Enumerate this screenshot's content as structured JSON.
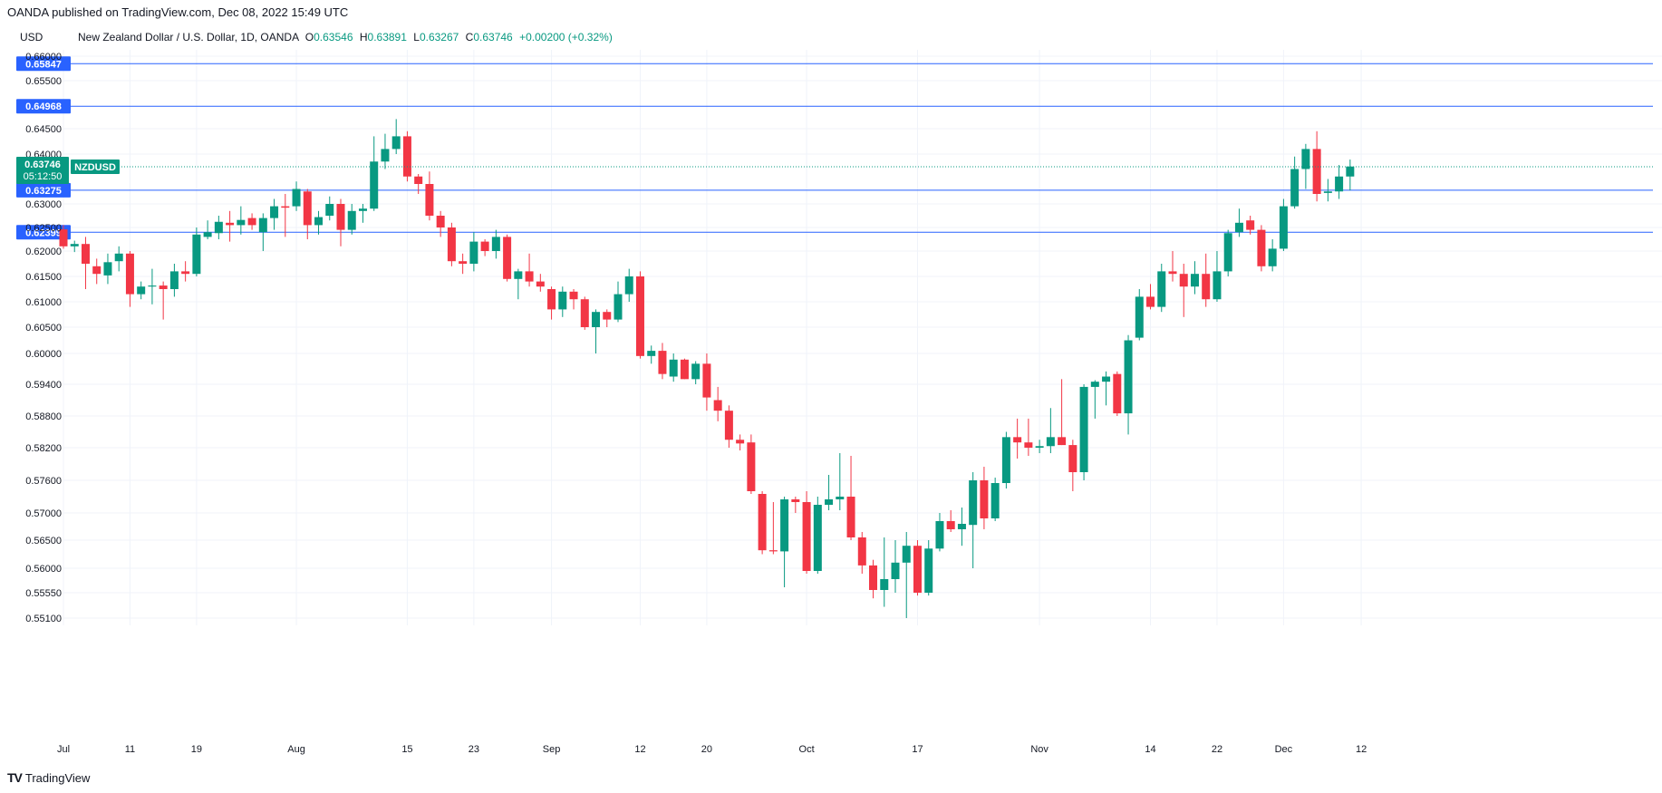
{
  "header": {
    "published": "OANDA published on TradingView.com, Dec 08, 2022 15:49 UTC"
  },
  "footer": {
    "logo_mark": "TV",
    "brand": "TradingView"
  },
  "chart_data": {
    "type": "candlestick",
    "currency_label": "USD",
    "symbol_line": "New Zealand Dollar / U.S. Dollar, 1D, OANDA",
    "ohlc": {
      "o_label": "O",
      "o": "0.63546",
      "h_label": "H",
      "h": "0.63891",
      "l_label": "L",
      "l": "0.63267",
      "c_label": "C",
      "c": "0.63746",
      "change": "+0.00200 (+0.32%)"
    },
    "y_ticks": [
      "0.66000",
      "0.65500",
      "0.64500",
      "0.64000",
      "0.63000",
      "0.62500",
      "0.62000",
      "0.61500",
      "0.61000",
      "0.60500",
      "0.60000",
      "0.59400",
      "0.58800",
      "0.58200",
      "0.57600",
      "0.57000",
      "0.56500",
      "0.56000",
      "0.55550",
      "0.55100"
    ],
    "x_ticks": [
      "Jul",
      "11",
      "19",
      "Aug",
      "15",
      "23",
      "Sep",
      "12",
      "20",
      "Oct",
      "17",
      "Nov",
      "14",
      "22",
      "Dec",
      "12"
    ],
    "horizontal_levels": [
      "0.65847",
      "0.64968",
      "0.63275",
      "0.62399"
    ],
    "price_label": {
      "value": "0.63746",
      "countdown": "05:12:50",
      "symbol": "NZDUSD"
    },
    "colors": {
      "up": "#089981",
      "down": "#f23645",
      "level": "#2962ff",
      "axis_text": "#131722",
      "grid": "#f0f3fa"
    },
    "candles": [
      {
        "date": "2022-07-01",
        "o": 0.6246,
        "h": 0.6255,
        "l": 0.6205,
        "c": 0.621
      },
      {
        "date": "2022-07-04",
        "o": 0.621,
        "h": 0.6222,
        "l": 0.6198,
        "c": 0.6215
      },
      {
        "date": "2022-07-05",
        "o": 0.6215,
        "h": 0.623,
        "l": 0.6125,
        "c": 0.6175
      },
      {
        "date": "2022-07-06",
        "o": 0.617,
        "h": 0.6185,
        "l": 0.6135,
        "c": 0.6155
      },
      {
        "date": "2022-07-07",
        "o": 0.6152,
        "h": 0.6195,
        "l": 0.6135,
        "c": 0.6178
      },
      {
        "date": "2022-07-08",
        "o": 0.618,
        "h": 0.621,
        "l": 0.616,
        "c": 0.6195
      },
      {
        "date": "2022-07-11",
        "o": 0.6195,
        "h": 0.62,
        "l": 0.609,
        "c": 0.6115
      },
      {
        "date": "2022-07-12",
        "o": 0.6115,
        "h": 0.614,
        "l": 0.6105,
        "c": 0.613
      },
      {
        "date": "2022-07-13",
        "o": 0.613,
        "h": 0.6165,
        "l": 0.6095,
        "c": 0.6132
      },
      {
        "date": "2022-07-14",
        "o": 0.6132,
        "h": 0.614,
        "l": 0.6065,
        "c": 0.6125
      },
      {
        "date": "2022-07-15",
        "o": 0.6125,
        "h": 0.6175,
        "l": 0.611,
        "c": 0.616
      },
      {
        "date": "2022-07-18",
        "o": 0.616,
        "h": 0.618,
        "l": 0.614,
        "c": 0.6155
      },
      {
        "date": "2022-07-19",
        "o": 0.6155,
        "h": 0.625,
        "l": 0.615,
        "c": 0.6235
      },
      {
        "date": "2022-07-20",
        "o": 0.623,
        "h": 0.6265,
        "l": 0.6225,
        "c": 0.624
      },
      {
        "date": "2022-07-21",
        "o": 0.6238,
        "h": 0.6275,
        "l": 0.6225,
        "c": 0.6262
      },
      {
        "date": "2022-07-22",
        "o": 0.626,
        "h": 0.6285,
        "l": 0.622,
        "c": 0.6255
      },
      {
        "date": "2022-07-25",
        "o": 0.6255,
        "h": 0.6295,
        "l": 0.6235,
        "c": 0.6266
      },
      {
        "date": "2022-07-26",
        "o": 0.627,
        "h": 0.628,
        "l": 0.6245,
        "c": 0.6255
      },
      {
        "date": "2022-07-27",
        "o": 0.624,
        "h": 0.628,
        "l": 0.62,
        "c": 0.627
      },
      {
        "date": "2022-07-28",
        "o": 0.627,
        "h": 0.631,
        "l": 0.6245,
        "c": 0.6295
      },
      {
        "date": "2022-07-29",
        "o": 0.6295,
        "h": 0.632,
        "l": 0.623,
        "c": 0.6292
      },
      {
        "date": "2022-08-01",
        "o": 0.6295,
        "h": 0.6345,
        "l": 0.6285,
        "c": 0.633
      },
      {
        "date": "2022-08-02",
        "o": 0.6325,
        "h": 0.633,
        "l": 0.6225,
        "c": 0.6255
      },
      {
        "date": "2022-08-03",
        "o": 0.6255,
        "h": 0.6285,
        "l": 0.6235,
        "c": 0.6272
      },
      {
        "date": "2022-08-04",
        "o": 0.6275,
        "h": 0.6315,
        "l": 0.6265,
        "c": 0.63
      },
      {
        "date": "2022-08-05",
        "o": 0.63,
        "h": 0.631,
        "l": 0.621,
        "c": 0.6245
      },
      {
        "date": "2022-08-08",
        "o": 0.6245,
        "h": 0.63,
        "l": 0.6235,
        "c": 0.6285
      },
      {
        "date": "2022-08-09",
        "o": 0.6285,
        "h": 0.63,
        "l": 0.626,
        "c": 0.629
      },
      {
        "date": "2022-08-10",
        "o": 0.629,
        "h": 0.6435,
        "l": 0.6285,
        "c": 0.6385
      },
      {
        "date": "2022-08-11",
        "o": 0.6385,
        "h": 0.644,
        "l": 0.637,
        "c": 0.641
      },
      {
        "date": "2022-08-12",
        "o": 0.641,
        "h": 0.647,
        "l": 0.64,
        "c": 0.6435
      },
      {
        "date": "2022-08-15",
        "o": 0.6435,
        "h": 0.6445,
        "l": 0.6345,
        "c": 0.6355
      },
      {
        "date": "2022-08-16",
        "o": 0.6355,
        "h": 0.636,
        "l": 0.632,
        "c": 0.634
      },
      {
        "date": "2022-08-17",
        "o": 0.634,
        "h": 0.6365,
        "l": 0.6265,
        "c": 0.6275
      },
      {
        "date": "2022-08-18",
        "o": 0.6275,
        "h": 0.6285,
        "l": 0.623,
        "c": 0.625
      },
      {
        "date": "2022-08-19",
        "o": 0.625,
        "h": 0.626,
        "l": 0.617,
        "c": 0.618
      },
      {
        "date": "2022-08-22",
        "o": 0.618,
        "h": 0.6195,
        "l": 0.6155,
        "c": 0.6175
      },
      {
        "date": "2022-08-23",
        "o": 0.6175,
        "h": 0.624,
        "l": 0.616,
        "c": 0.622
      },
      {
        "date": "2022-08-24",
        "o": 0.622,
        "h": 0.6225,
        "l": 0.619,
        "c": 0.62
      },
      {
        "date": "2022-08-25",
        "o": 0.62,
        "h": 0.6245,
        "l": 0.6185,
        "c": 0.623
      },
      {
        "date": "2022-08-26",
        "o": 0.623,
        "h": 0.6235,
        "l": 0.614,
        "c": 0.6145
      },
      {
        "date": "2022-08-29",
        "o": 0.6145,
        "h": 0.6165,
        "l": 0.6105,
        "c": 0.616
      },
      {
        "date": "2022-08-30",
        "o": 0.616,
        "h": 0.6195,
        "l": 0.613,
        "c": 0.614
      },
      {
        "date": "2022-08-31",
        "o": 0.614,
        "h": 0.6155,
        "l": 0.612,
        "c": 0.613
      },
      {
        "date": "2022-09-01",
        "o": 0.6125,
        "h": 0.613,
        "l": 0.6065,
        "c": 0.6085
      },
      {
        "date": "2022-09-02",
        "o": 0.6085,
        "h": 0.613,
        "l": 0.607,
        "c": 0.612
      },
      {
        "date": "2022-09-05",
        "o": 0.612,
        "h": 0.6125,
        "l": 0.6085,
        "c": 0.6105
      },
      {
        "date": "2022-09-06",
        "o": 0.6105,
        "h": 0.611,
        "l": 0.6045,
        "c": 0.605
      },
      {
        "date": "2022-09-07",
        "o": 0.605,
        "h": 0.6085,
        "l": 0.6,
        "c": 0.608
      },
      {
        "date": "2022-09-08",
        "o": 0.608,
        "h": 0.6085,
        "l": 0.605,
        "c": 0.6065
      },
      {
        "date": "2022-09-09",
        "o": 0.6065,
        "h": 0.614,
        "l": 0.606,
        "c": 0.6115
      },
      {
        "date": "2022-09-12",
        "o": 0.6115,
        "h": 0.6165,
        "l": 0.61,
        "c": 0.615
      },
      {
        "date": "2022-09-13",
        "o": 0.615,
        "h": 0.616,
        "l": 0.599,
        "c": 0.5995
      },
      {
        "date": "2022-09-14",
        "o": 0.5995,
        "h": 0.6015,
        "l": 0.598,
        "c": 0.6005
      },
      {
        "date": "2022-09-15",
        "o": 0.6005,
        "h": 0.602,
        "l": 0.595,
        "c": 0.596
      },
      {
        "date": "2022-09-16",
        "o": 0.5955,
        "h": 0.6,
        "l": 0.5945,
        "c": 0.5988
      },
      {
        "date": "2022-09-19",
        "o": 0.5988,
        "h": 0.599,
        "l": 0.595,
        "c": 0.595
      },
      {
        "date": "2022-09-20",
        "o": 0.595,
        "h": 0.5985,
        "l": 0.594,
        "c": 0.598
      },
      {
        "date": "2022-09-21",
        "o": 0.598,
        "h": 0.6,
        "l": 0.589,
        "c": 0.5915
      },
      {
        "date": "2022-09-22",
        "o": 0.591,
        "h": 0.5935,
        "l": 0.587,
        "c": 0.589
      },
      {
        "date": "2022-09-23",
        "o": 0.589,
        "h": 0.59,
        "l": 0.582,
        "c": 0.5835
      },
      {
        "date": "2022-09-26",
        "o": 0.5835,
        "h": 0.5845,
        "l": 0.5815,
        "c": 0.5828
      },
      {
        "date": "2022-09-27",
        "o": 0.583,
        "h": 0.5845,
        "l": 0.5735,
        "c": 0.574
      },
      {
        "date": "2022-09-28",
        "o": 0.5735,
        "h": 0.574,
        "l": 0.5625,
        "c": 0.5632
      },
      {
        "date": "2022-09-29",
        "o": 0.5632,
        "h": 0.572,
        "l": 0.5625,
        "c": 0.563
      },
      {
        "date": "2022-09-30",
        "o": 0.563,
        "h": 0.573,
        "l": 0.5565,
        "c": 0.5725
      },
      {
        "date": "2022-10-03",
        "o": 0.5725,
        "h": 0.573,
        "l": 0.57,
        "c": 0.572
      },
      {
        "date": "2022-10-04",
        "o": 0.572,
        "h": 0.574,
        "l": 0.559,
        "c": 0.5595
      },
      {
        "date": "2022-10-05",
        "o": 0.5595,
        "h": 0.573,
        "l": 0.559,
        "c": 0.5715
      },
      {
        "date": "2022-10-06",
        "o": 0.5715,
        "h": 0.577,
        "l": 0.5705,
        "c": 0.5725
      },
      {
        "date": "2022-10-07",
        "o": 0.5725,
        "h": 0.581,
        "l": 0.5705,
        "c": 0.573
      },
      {
        "date": "2022-10-10",
        "o": 0.573,
        "h": 0.5805,
        "l": 0.565,
        "c": 0.5655
      },
      {
        "date": "2022-10-11",
        "o": 0.5655,
        "h": 0.5665,
        "l": 0.559,
        "c": 0.5605
      },
      {
        "date": "2022-10-12",
        "o": 0.5605,
        "h": 0.5615,
        "l": 0.5545,
        "c": 0.556
      },
      {
        "date": "2022-10-13",
        "o": 0.556,
        "h": 0.5655,
        "l": 0.553,
        "c": 0.558
      },
      {
        "date": "2022-10-14",
        "o": 0.558,
        "h": 0.565,
        "l": 0.5555,
        "c": 0.561
      },
      {
        "date": "2022-10-17",
        "o": 0.561,
        "h": 0.5665,
        "l": 0.551,
        "c": 0.564
      },
      {
        "date": "2022-10-18",
        "o": 0.564,
        "h": 0.565,
        "l": 0.555,
        "c": 0.5555
      },
      {
        "date": "2022-10-19",
        "o": 0.5555,
        "h": 0.565,
        "l": 0.555,
        "c": 0.5635
      },
      {
        "date": "2022-10-20",
        "o": 0.5635,
        "h": 0.57,
        "l": 0.563,
        "c": 0.5685
      },
      {
        "date": "2022-10-21",
        "o": 0.5685,
        "h": 0.5705,
        "l": 0.5665,
        "c": 0.567
      },
      {
        "date": "2022-10-24",
        "o": 0.567,
        "h": 0.571,
        "l": 0.564,
        "c": 0.568
      },
      {
        "date": "2022-10-25",
        "o": 0.5678,
        "h": 0.5775,
        "l": 0.56,
        "c": 0.576
      },
      {
        "date": "2022-10-26",
        "o": 0.576,
        "h": 0.5785,
        "l": 0.567,
        "c": 0.569
      },
      {
        "date": "2022-10-27",
        "o": 0.569,
        "h": 0.5765,
        "l": 0.5685,
        "c": 0.5755
      },
      {
        "date": "2022-10-28",
        "o": 0.5755,
        "h": 0.585,
        "l": 0.5745,
        "c": 0.584
      },
      {
        "date": "2022-10-31",
        "o": 0.584,
        "h": 0.5875,
        "l": 0.58,
        "c": 0.583
      },
      {
        "date": "2022-11-01",
        "o": 0.583,
        "h": 0.5875,
        "l": 0.5805,
        "c": 0.582
      },
      {
        "date": "2022-11-02",
        "o": 0.582,
        "h": 0.5835,
        "l": 0.581,
        "c": 0.5823
      },
      {
        "date": "2022-11-03",
        "o": 0.5823,
        "h": 0.5895,
        "l": 0.581,
        "c": 0.584
      },
      {
        "date": "2022-11-04",
        "o": 0.584,
        "h": 0.595,
        "l": 0.5825,
        "c": 0.5825
      },
      {
        "date": "2022-11-07",
        "o": 0.5825,
        "h": 0.5835,
        "l": 0.574,
        "c": 0.5775
      },
      {
        "date": "2022-11-08",
        "o": 0.5775,
        "h": 0.594,
        "l": 0.576,
        "c": 0.5935
      },
      {
        "date": "2022-11-09",
        "o": 0.5935,
        "h": 0.5948,
        "l": 0.5875,
        "c": 0.5945
      },
      {
        "date": "2022-11-10",
        "o": 0.5945,
        "h": 0.5965,
        "l": 0.59,
        "c": 0.5955
      },
      {
        "date": "2022-11-11",
        "o": 0.596,
        "h": 0.5965,
        "l": 0.588,
        "c": 0.5885
      },
      {
        "date": "2022-11-14",
        "o": 0.5885,
        "h": 0.6035,
        "l": 0.5845,
        "c": 0.6025
      },
      {
        "date": "2022-11-15",
        "o": 0.603,
        "h": 0.6125,
        "l": 0.6025,
        "c": 0.611
      },
      {
        "date": "2022-11-16",
        "o": 0.611,
        "h": 0.6135,
        "l": 0.6085,
        "c": 0.609
      },
      {
        "date": "2022-11-17",
        "o": 0.609,
        "h": 0.6175,
        "l": 0.608,
        "c": 0.616
      },
      {
        "date": "2022-11-18",
        "o": 0.616,
        "h": 0.62,
        "l": 0.614,
        "c": 0.6155
      },
      {
        "date": "2022-11-21",
        "o": 0.6155,
        "h": 0.6175,
        "l": 0.607,
        "c": 0.613
      },
      {
        "date": "2022-11-22",
        "o": 0.613,
        "h": 0.618,
        "l": 0.6115,
        "c": 0.6155
      },
      {
        "date": "2022-11-23",
        "o": 0.6155,
        "h": 0.6195,
        "l": 0.609,
        "c": 0.6105
      },
      {
        "date": "2022-11-24",
        "o": 0.6105,
        "h": 0.62,
        "l": 0.61,
        "c": 0.616
      },
      {
        "date": "2022-11-25",
        "o": 0.616,
        "h": 0.6245,
        "l": 0.615,
        "c": 0.6238
      },
      {
        "date": "2022-11-28",
        "o": 0.624,
        "h": 0.629,
        "l": 0.623,
        "c": 0.626
      },
      {
        "date": "2022-11-29",
        "o": 0.6265,
        "h": 0.6275,
        "l": 0.6235,
        "c": 0.6245
      },
      {
        "date": "2022-11-30",
        "o": 0.6245,
        "h": 0.6255,
        "l": 0.616,
        "c": 0.617
      },
      {
        "date": "2022-12-01",
        "o": 0.617,
        "h": 0.6225,
        "l": 0.616,
        "c": 0.6205
      },
      {
        "date": "2022-12-02",
        "o": 0.6205,
        "h": 0.631,
        "l": 0.62,
        "c": 0.6295
      },
      {
        "date": "2022-12-05",
        "o": 0.6295,
        "h": 0.6395,
        "l": 0.629,
        "c": 0.637
      },
      {
        "date": "2022-12-06",
        "o": 0.637,
        "h": 0.642,
        "l": 0.633,
        "c": 0.641
      },
      {
        "date": "2022-12-07",
        "o": 0.641,
        "h": 0.6445,
        "l": 0.6305,
        "c": 0.632
      },
      {
        "date": "2022-12-08",
        "o": 0.6322,
        "h": 0.635,
        "l": 0.6305,
        "c": 0.6325
      },
      {
        "date": "2022-12-09",
        "o": 0.6325,
        "h": 0.6378,
        "l": 0.631,
        "c": 0.6355
      },
      {
        "date": "2022-12-12",
        "o": 0.6355,
        "h": 0.6389,
        "l": 0.6327,
        "c": 0.6375
      }
    ]
  }
}
